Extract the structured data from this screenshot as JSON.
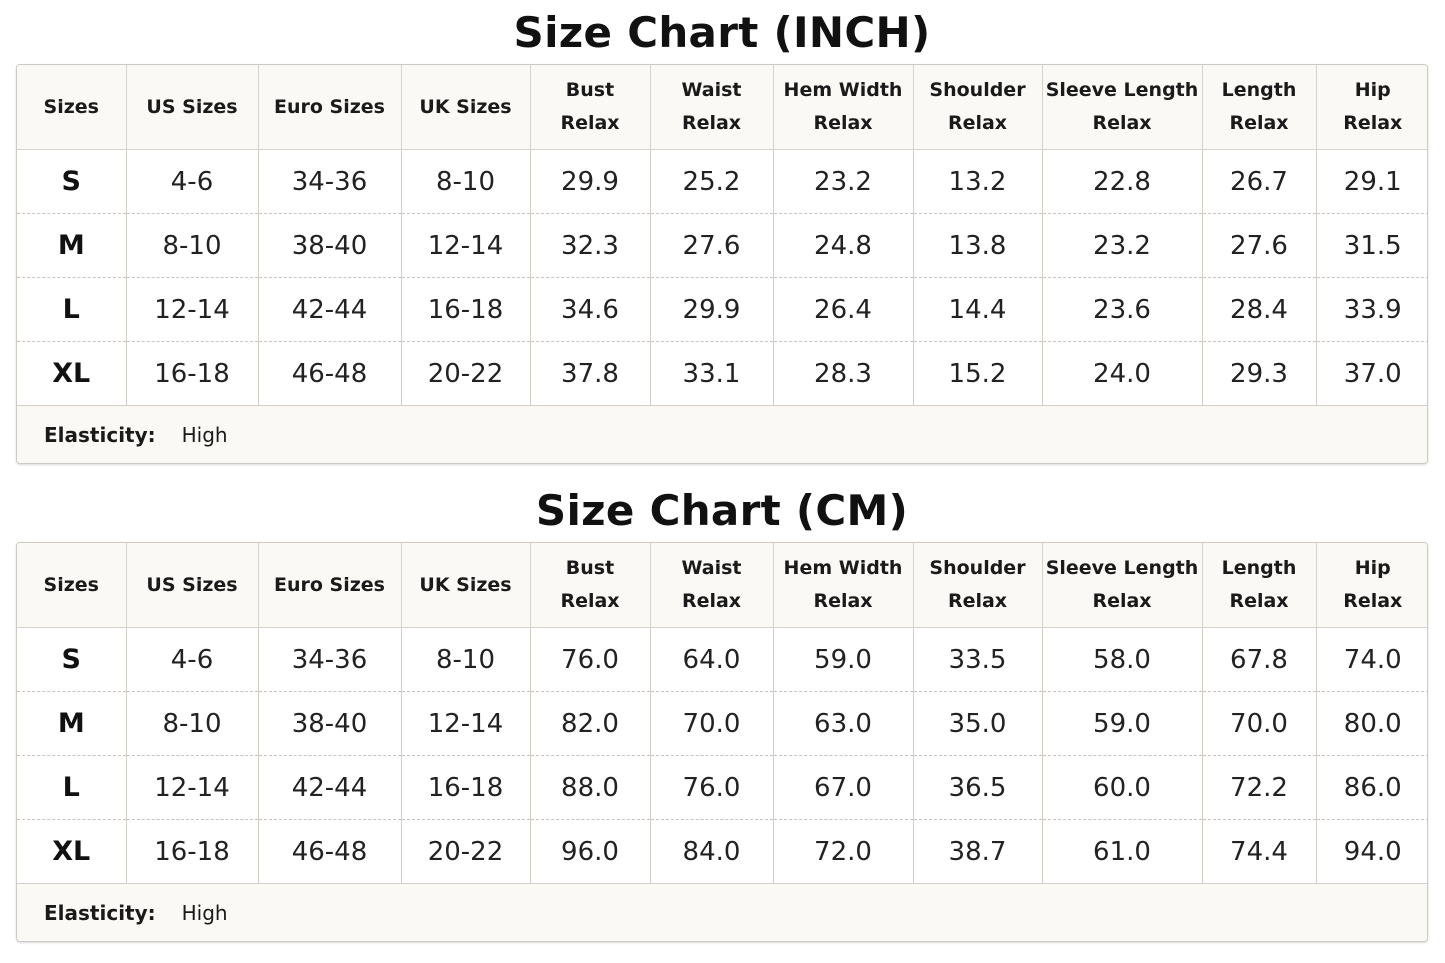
{
  "inch": {
    "title": "Size Chart (INCH)",
    "headers": [
      [
        "Sizes"
      ],
      [
        "US Sizes"
      ],
      [
        "Euro Sizes"
      ],
      [
        "UK Sizes"
      ],
      [
        "Bust",
        "Relax"
      ],
      [
        "Waist",
        "Relax"
      ],
      [
        "Hem Width",
        "Relax"
      ],
      [
        "Shoulder",
        "Relax"
      ],
      [
        "Sleeve Length",
        "Relax"
      ],
      [
        "Length",
        "Relax"
      ],
      [
        "Hip",
        "Relax"
      ]
    ],
    "rows": [
      [
        "S",
        "4-6",
        "34-36",
        "8-10",
        "29.9",
        "25.2",
        "23.2",
        "13.2",
        "22.8",
        "26.7",
        "29.1"
      ],
      [
        "M",
        "8-10",
        "38-40",
        "12-14",
        "32.3",
        "27.6",
        "24.8",
        "13.8",
        "23.2",
        "27.6",
        "31.5"
      ],
      [
        "L",
        "12-14",
        "42-44",
        "16-18",
        "34.6",
        "29.9",
        "26.4",
        "14.4",
        "23.6",
        "28.4",
        "33.9"
      ],
      [
        "XL",
        "16-18",
        "46-48",
        "20-22",
        "37.8",
        "33.1",
        "28.3",
        "15.2",
        "24.0",
        "29.3",
        "37.0"
      ]
    ],
    "footer": {
      "label": "Elasticity:",
      "value": "High"
    }
  },
  "cm": {
    "title": "Size Chart (CM)",
    "headers": [
      [
        "Sizes"
      ],
      [
        "US Sizes"
      ],
      [
        "Euro Sizes"
      ],
      [
        "UK Sizes"
      ],
      [
        "Bust",
        "Relax"
      ],
      [
        "Waist",
        "Relax"
      ],
      [
        "Hem Width",
        "Relax"
      ],
      [
        "Shoulder",
        "Relax"
      ],
      [
        "Sleeve Length",
        "Relax"
      ],
      [
        "Length",
        "Relax"
      ],
      [
        "Hip",
        "Relax"
      ]
    ],
    "rows": [
      [
        "S",
        "4-6",
        "34-36",
        "8-10",
        "76.0",
        "64.0",
        "59.0",
        "33.5",
        "58.0",
        "67.8",
        "74.0"
      ],
      [
        "M",
        "8-10",
        "38-40",
        "12-14",
        "82.0",
        "70.0",
        "63.0",
        "35.0",
        "59.0",
        "70.0",
        "80.0"
      ],
      [
        "L",
        "12-14",
        "42-44",
        "16-18",
        "88.0",
        "76.0",
        "67.0",
        "36.5",
        "60.0",
        "72.2",
        "86.0"
      ],
      [
        "XL",
        "16-18",
        "46-48",
        "20-22",
        "96.0",
        "84.0",
        "72.0",
        "38.7",
        "61.0",
        "74.4",
        "94.0"
      ]
    ],
    "footer": {
      "label": "Elasticity:",
      "value": "High"
    }
  }
}
